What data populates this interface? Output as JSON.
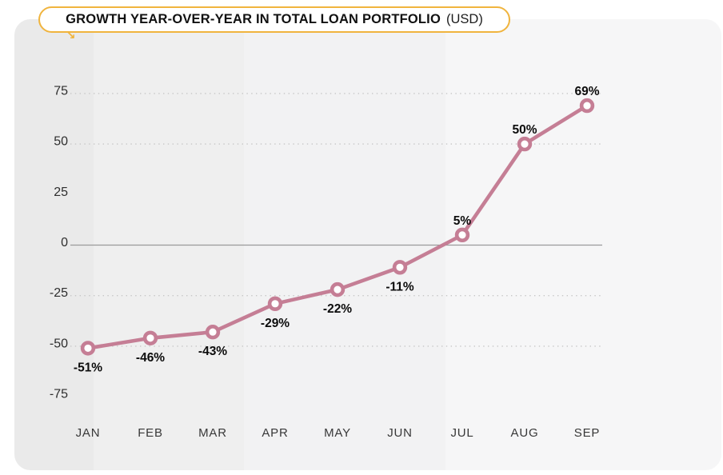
{
  "header": {
    "title_main": "GROWTH YEAR-OVER-YEAR IN TOTAL LOAN PORTFOLIO",
    "title_unit": "(USD)"
  },
  "icons": {
    "growth_arrow": "↘"
  },
  "colors": {
    "accent_gold": "#f0b43e",
    "line_pink": "#c57e95",
    "marker_fill": "#ffffff",
    "card_bands": [
      "#eaeaea",
      "#efefef",
      "#f2f2f3",
      "#f6f6f7"
    ],
    "gridline": "#c6c6c6",
    "zero_line": "#9a9a9a",
    "y_tick_text": "#2e2e2e",
    "x_tick_text": "#383838",
    "value_label_text": "#0c0c0c"
  },
  "chart_data": {
    "type": "line",
    "title": "GROWTH YEAR-OVER-YEAR IN TOTAL LOAN PORTFOLIO (USD)",
    "categories": [
      "JAN",
      "FEB",
      "MAR",
      "APR",
      "MAY",
      "JUN",
      "JUL",
      "AUG",
      "SEP"
    ],
    "values": [
      -51,
      -46,
      -43,
      -29,
      -22,
      -11,
      5,
      50,
      69
    ],
    "point_labels": [
      "-51%",
      "-46%",
      "-43%",
      "-29%",
      "-22%",
      "-11%",
      "5%",
      "50%",
      "69%"
    ],
    "xlabel": "",
    "ylabel": "",
    "ylim": [
      -75,
      75
    ],
    "y_ticks": [
      75,
      50,
      25,
      0,
      -25,
      -50,
      -75
    ],
    "gridlines_at": [
      75,
      50,
      -25,
      -50
    ],
    "zero_line_at": 0,
    "grid_style": "dotted",
    "legend": false,
    "marker": "open-circle"
  }
}
